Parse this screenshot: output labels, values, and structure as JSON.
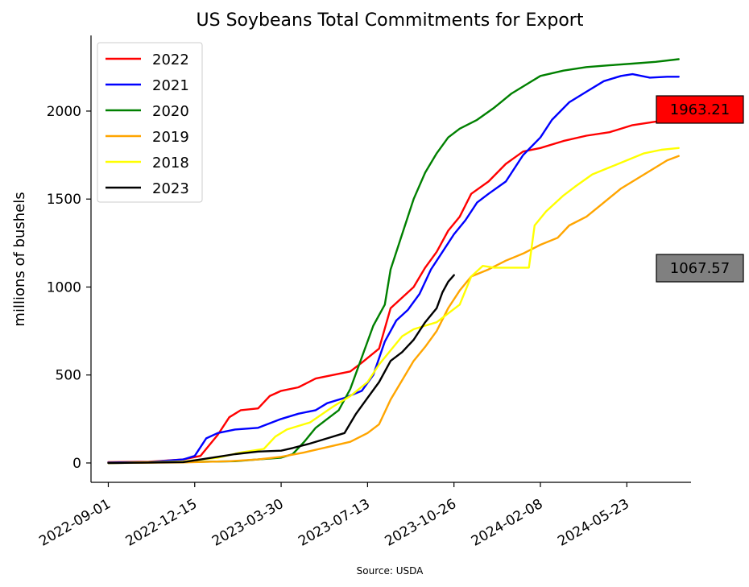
{
  "chart_data": {
    "type": "line",
    "title": "US Soybeans Total Commitments for Export",
    "xlabel": "",
    "ylabel": "millions of bushels",
    "source": "Source: USDA",
    "x_axis": {
      "type": "date",
      "range": [
        "2022-08-11",
        "2024-08-09"
      ],
      "ticks": [
        "2022-09-01",
        "2022-12-15",
        "2023-03-30",
        "2023-07-13",
        "2023-10-26",
        "2024-02-08",
        "2024-05-23"
      ]
    },
    "y_axis": {
      "range": [
        -110,
        2430
      ],
      "ticks": [
        0,
        500,
        1000,
        1500,
        2000
      ]
    },
    "grid": false,
    "legend_position": "top-left",
    "series": [
      {
        "name": "2022",
        "color": "#ff0000",
        "points": [
          [
            "2022-09-01",
            5
          ],
          [
            "2022-10-20",
            7
          ],
          [
            "2022-12-01",
            20
          ],
          [
            "2022-12-22",
            40
          ],
          [
            "2023-01-12",
            160
          ],
          [
            "2023-01-26",
            260
          ],
          [
            "2023-02-09",
            300
          ],
          [
            "2023-03-02",
            310
          ],
          [
            "2023-03-16",
            380
          ],
          [
            "2023-03-30",
            410
          ],
          [
            "2023-04-20",
            430
          ],
          [
            "2023-05-11",
            480
          ],
          [
            "2023-06-01",
            500
          ],
          [
            "2023-06-22",
            520
          ],
          [
            "2023-07-06",
            570
          ],
          [
            "2023-07-27",
            650
          ],
          [
            "2023-08-10",
            880
          ],
          [
            "2023-08-24",
            940
          ],
          [
            "2023-09-07",
            1000
          ],
          [
            "2023-09-21",
            1110
          ],
          [
            "2023-10-05",
            1200
          ],
          [
            "2023-10-19",
            1320
          ],
          [
            "2023-11-02",
            1400
          ],
          [
            "2023-11-16",
            1530
          ],
          [
            "2023-12-07",
            1600
          ],
          [
            "2023-12-28",
            1700
          ],
          [
            "2024-01-18",
            1770
          ],
          [
            "2024-02-08",
            1790
          ],
          [
            "2024-03-07",
            1830
          ],
          [
            "2024-04-04",
            1860
          ],
          [
            "2024-05-02",
            1880
          ],
          [
            "2024-05-30",
            1920
          ],
          [
            "2024-06-27",
            1940
          ],
          [
            "2024-07-25",
            1963
          ]
        ]
      },
      {
        "name": "2021",
        "color": "#0000ff",
        "points": [
          [
            "2022-09-01",
            3
          ],
          [
            "2022-10-20",
            5
          ],
          [
            "2022-12-01",
            20
          ],
          [
            "2022-12-15",
            40
          ],
          [
            "2022-12-29",
            140
          ],
          [
            "2023-01-12",
            170
          ],
          [
            "2023-02-02",
            190
          ],
          [
            "2023-03-02",
            200
          ],
          [
            "2023-03-30",
            250
          ],
          [
            "2023-04-20",
            280
          ],
          [
            "2023-05-11",
            300
          ],
          [
            "2023-05-25",
            340
          ],
          [
            "2023-06-15",
            370
          ],
          [
            "2023-07-06",
            410
          ],
          [
            "2023-07-20",
            500
          ],
          [
            "2023-08-03",
            690
          ],
          [
            "2023-08-17",
            810
          ],
          [
            "2023-08-31",
            870
          ],
          [
            "2023-09-14",
            960
          ],
          [
            "2023-09-28",
            1100
          ],
          [
            "2023-10-12",
            1200
          ],
          [
            "2023-10-26",
            1300
          ],
          [
            "2023-11-09",
            1380
          ],
          [
            "2023-11-23",
            1480
          ],
          [
            "2023-12-07",
            1530
          ],
          [
            "2023-12-28",
            1600
          ],
          [
            "2024-01-18",
            1750
          ],
          [
            "2024-02-08",
            1850
          ],
          [
            "2024-02-22",
            1950
          ],
          [
            "2024-03-14",
            2050
          ],
          [
            "2024-04-04",
            2110
          ],
          [
            "2024-04-25",
            2170
          ],
          [
            "2024-05-16",
            2200
          ],
          [
            "2024-05-30",
            2210
          ],
          [
            "2024-06-20",
            2190
          ],
          [
            "2024-07-11",
            2195
          ],
          [
            "2024-07-25",
            2195
          ]
        ]
      },
      {
        "name": "2020",
        "color": "#008000",
        "points": [
          [
            "2022-09-01",
            0
          ],
          [
            "2022-12-01",
            5
          ],
          [
            "2023-02-02",
            10
          ],
          [
            "2023-03-02",
            20
          ],
          [
            "2023-03-30",
            30
          ],
          [
            "2023-04-13",
            50
          ],
          [
            "2023-04-27",
            120
          ],
          [
            "2023-05-11",
            200
          ],
          [
            "2023-05-25",
            250
          ],
          [
            "2023-06-08",
            300
          ],
          [
            "2023-06-22",
            420
          ],
          [
            "2023-07-06",
            600
          ],
          [
            "2023-07-20",
            780
          ],
          [
            "2023-08-03",
            900
          ],
          [
            "2023-08-10",
            1100
          ],
          [
            "2023-08-24",
            1300
          ],
          [
            "2023-09-07",
            1500
          ],
          [
            "2023-09-21",
            1650
          ],
          [
            "2023-10-05",
            1760
          ],
          [
            "2023-10-19",
            1850
          ],
          [
            "2023-11-02",
            1900
          ],
          [
            "2023-11-23",
            1950
          ],
          [
            "2023-12-14",
            2020
          ],
          [
            "2024-01-04",
            2100
          ],
          [
            "2024-01-25",
            2160
          ],
          [
            "2024-02-08",
            2200
          ],
          [
            "2024-03-07",
            2230
          ],
          [
            "2024-04-04",
            2250
          ],
          [
            "2024-05-02",
            2260
          ],
          [
            "2024-05-30",
            2270
          ],
          [
            "2024-06-27",
            2280
          ],
          [
            "2024-07-25",
            2295
          ]
        ]
      },
      {
        "name": "2019",
        "color": "#ffa500",
        "points": [
          [
            "2022-09-01",
            0
          ],
          [
            "2022-12-01",
            3
          ],
          [
            "2023-01-26",
            10
          ],
          [
            "2023-03-02",
            20
          ],
          [
            "2023-03-30",
            35
          ],
          [
            "2023-04-27",
            60
          ],
          [
            "2023-05-25",
            90
          ],
          [
            "2023-06-22",
            120
          ],
          [
            "2023-07-13",
            170
          ],
          [
            "2023-07-27",
            220
          ],
          [
            "2023-08-10",
            360
          ],
          [
            "2023-08-24",
            470
          ],
          [
            "2023-09-07",
            580
          ],
          [
            "2023-09-21",
            660
          ],
          [
            "2023-10-05",
            750
          ],
          [
            "2023-10-19",
            880
          ],
          [
            "2023-11-02",
            980
          ],
          [
            "2023-11-16",
            1060
          ],
          [
            "2023-12-07",
            1100
          ],
          [
            "2023-12-28",
            1150
          ],
          [
            "2024-01-18",
            1190
          ],
          [
            "2024-02-08",
            1240
          ],
          [
            "2024-02-29",
            1280
          ],
          [
            "2024-03-14",
            1350
          ],
          [
            "2024-04-04",
            1400
          ],
          [
            "2024-04-25",
            1480
          ],
          [
            "2024-05-16",
            1560
          ],
          [
            "2024-06-06",
            1620
          ],
          [
            "2024-06-27",
            1680
          ],
          [
            "2024-07-11",
            1720
          ],
          [
            "2024-07-25",
            1745
          ]
        ]
      },
      {
        "name": "2018",
        "color": "#ffff00",
        "points": [
          [
            "2022-09-01",
            0
          ],
          [
            "2022-12-01",
            8
          ],
          [
            "2023-01-12",
            30
          ],
          [
            "2023-02-09",
            60
          ],
          [
            "2023-03-09",
            80
          ],
          [
            "2023-03-23",
            150
          ],
          [
            "2023-04-06",
            190
          ],
          [
            "2023-05-04",
            230
          ],
          [
            "2023-06-01",
            320
          ],
          [
            "2023-06-22",
            380
          ],
          [
            "2023-07-13",
            460
          ],
          [
            "2023-07-27",
            560
          ],
          [
            "2023-08-10",
            640
          ],
          [
            "2023-08-24",
            720
          ],
          [
            "2023-09-07",
            760
          ],
          [
            "2023-09-21",
            780
          ],
          [
            "2023-10-05",
            800
          ],
          [
            "2023-10-19",
            850
          ],
          [
            "2023-11-02",
            900
          ],
          [
            "2023-11-16",
            1060
          ],
          [
            "2023-11-30",
            1120
          ],
          [
            "2023-12-14",
            1110
          ],
          [
            "2024-01-11",
            1110
          ],
          [
            "2024-01-25",
            1110
          ],
          [
            "2024-02-01",
            1350
          ],
          [
            "2024-02-15",
            1430
          ],
          [
            "2024-03-07",
            1520
          ],
          [
            "2024-03-21",
            1570
          ],
          [
            "2024-04-11",
            1640
          ],
          [
            "2024-05-02",
            1680
          ],
          [
            "2024-05-23",
            1720
          ],
          [
            "2024-06-13",
            1760
          ],
          [
            "2024-07-04",
            1780
          ],
          [
            "2024-07-25",
            1790
          ]
        ]
      },
      {
        "name": "2023",
        "color": "#000000",
        "points": [
          [
            "2022-09-01",
            0
          ],
          [
            "2022-12-01",
            5
          ],
          [
            "2023-01-05",
            30
          ],
          [
            "2023-02-02",
            50
          ],
          [
            "2023-03-02",
            65
          ],
          [
            "2023-03-30",
            70
          ],
          [
            "2023-04-13",
            85
          ],
          [
            "2023-05-04",
            110
          ],
          [
            "2023-05-25",
            140
          ],
          [
            "2023-06-15",
            170
          ],
          [
            "2023-06-29",
            280
          ],
          [
            "2023-07-13",
            370
          ],
          [
            "2023-07-27",
            460
          ],
          [
            "2023-08-10",
            580
          ],
          [
            "2023-08-24",
            630
          ],
          [
            "2023-09-07",
            700
          ],
          [
            "2023-09-21",
            800
          ],
          [
            "2023-10-05",
            880
          ],
          [
            "2023-10-12",
            970
          ],
          [
            "2023-10-19",
            1030
          ],
          [
            "2023-10-26",
            1067.57
          ]
        ]
      }
    ],
    "annotations": [
      {
        "text": "1963.21",
        "y": 1963.21,
        "background": "#ff0000"
      },
      {
        "text": "1067.57",
        "y": 1067.57,
        "background": "#808080"
      }
    ]
  }
}
